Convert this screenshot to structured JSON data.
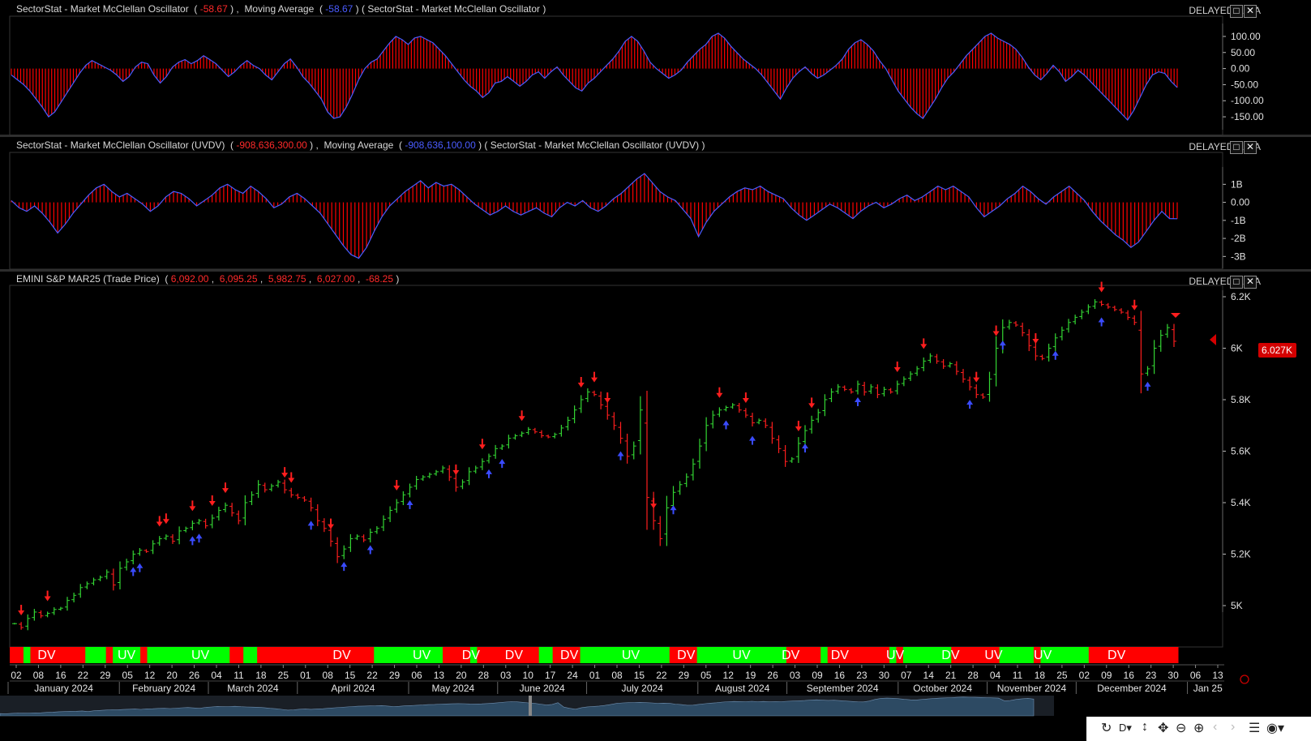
{
  "delayed_label": "DELAYED DATA",
  "panes": [
    {
      "title": "SectorStat - Market McClellan Oscillator",
      "value": "-58.67",
      "ma_label": "Moving Average",
      "ma_value": "-58.67",
      "suffix": "( SectorStat - Market McClellan Oscillator )"
    },
    {
      "title": "SectorStat - Market McClellan Oscillator (UVDV)",
      "value": "-908,636,300.00",
      "ma_label": "Moving Average",
      "ma_value": "-908,636,100.00",
      "suffix": "( SectorStat - Market McClellan Oscillator (UVDV) )"
    },
    {
      "title": "EMINI S&P MAR25 (Trade Price)",
      "open": "6,092.00",
      "high": "6,095.25",
      "low": "5,982.75",
      "close": "6,027.00",
      "change": "-68.25"
    }
  ],
  "last_price_badge": "6.027K",
  "colors": {
    "up": "#33d633",
    "down": "#ff1e1e",
    "uv": "#00ff00",
    "dv": "#ff0000",
    "ma": "#4a5cff",
    "arrow_up": "#3a4bff"
  },
  "chart_data": [
    {
      "type": "bar",
      "name": "McClellan Oscillator",
      "ylim": [
        -170,
        120
      ],
      "yticks": [
        "100.00",
        "50.00",
        "0.00",
        "-50.00",
        "-100.00",
        "-150.00"
      ],
      "ytick_values": [
        100,
        50,
        0,
        -50,
        -100,
        -150
      ],
      "values": [
        -20,
        -35,
        -50,
        -70,
        -95,
        -120,
        -150,
        -135,
        -105,
        -75,
        -45,
        -15,
        10,
        25,
        15,
        5,
        -5,
        -20,
        -40,
        -25,
        5,
        20,
        15,
        -20,
        -45,
        -25,
        5,
        20,
        28,
        15,
        25,
        40,
        28,
        15,
        -5,
        -25,
        -10,
        10,
        25,
        10,
        0,
        -20,
        -35,
        -10,
        15,
        30,
        5,
        -25,
        -45,
        -70,
        -95,
        -135,
        -155,
        -150,
        -120,
        -80,
        -35,
        0,
        20,
        30,
        55,
        80,
        100,
        90,
        75,
        95,
        100,
        90,
        80,
        60,
        40,
        15,
        -10,
        -35,
        -55,
        -70,
        -90,
        -75,
        -45,
        -40,
        -25,
        -40,
        -55,
        -40,
        -20,
        -10,
        -30,
        -10,
        5,
        -20,
        -40,
        -60,
        -70,
        -45,
        -30,
        -10,
        10,
        30,
        55,
        85,
        100,
        85,
        55,
        20,
        0,
        -15,
        -30,
        -20,
        -5,
        20,
        40,
        60,
        75,
        100,
        110,
        95,
        70,
        50,
        30,
        15,
        0,
        -20,
        -45,
        -70,
        -95,
        -60,
        -30,
        -10,
        5,
        -15,
        -30,
        -20,
        -5,
        10,
        30,
        60,
        80,
        90,
        75,
        55,
        25,
        0,
        -35,
        -70,
        -95,
        -120,
        -140,
        -155,
        -125,
        -95,
        -60,
        -30,
        -10,
        15,
        40,
        60,
        80,
        100,
        110,
        95,
        85,
        75,
        60,
        35,
        5,
        -20,
        -35,
        -15,
        10,
        -10,
        -40,
        -25,
        -5,
        -20,
        -40,
        -60,
        -80,
        -100,
        -120,
        -140,
        -160,
        -130,
        -90,
        -50,
        -20,
        -10,
        -15,
        -40,
        -58.67
      ]
    },
    {
      "type": "bar",
      "name": "McClellan Oscillator (UVDV)",
      "ylim": [
        -3.3,
        1.6
      ],
      "yticks": [
        "1B",
        "0.00",
        "-1B",
        "-2B",
        "-3B"
      ],
      "ytick_values": [
        1,
        0,
        -1,
        -2,
        -3
      ],
      "values": [
        0.1,
        -0.3,
        -0.5,
        -0.2,
        -0.6,
        -1.1,
        -1.7,
        -1.2,
        -0.6,
        -0.1,
        0.4,
        0.8,
        1.0,
        0.6,
        0.3,
        0.5,
        0.2,
        -0.1,
        -0.5,
        -0.2,
        0.3,
        0.6,
        0.5,
        0.2,
        -0.2,
        0.1,
        0.4,
        0.8,
        1.0,
        0.7,
        0.5,
        0.9,
        0.6,
        0.2,
        -0.3,
        -0.1,
        0.3,
        0.5,
        0.2,
        -0.2,
        -0.6,
        -1.2,
        -1.8,
        -2.4,
        -2.9,
        -3.1,
        -2.5,
        -1.6,
        -0.8,
        -0.2,
        0.2,
        0.6,
        0.9,
        1.2,
        0.8,
        1.1,
        0.9,
        1.0,
        0.7,
        0.3,
        -0.1,
        -0.4,
        -0.7,
        -0.5,
        -0.2,
        -0.5,
        -0.7,
        -0.5,
        -0.3,
        -0.6,
        -0.8,
        -0.3,
        0.0,
        -0.2,
        0.1,
        -0.3,
        -0.5,
        -0.2,
        0.2,
        0.5,
        0.9,
        1.3,
        1.6,
        1.1,
        0.6,
        0.3,
        0.1,
        -0.4,
        -0.9,
        -1.9,
        -1.1,
        -0.5,
        -0.1,
        0.3,
        0.6,
        0.8,
        0.7,
        0.9,
        0.6,
        0.4,
        0.2,
        -0.3,
        -0.7,
        -1.0,
        -0.7,
        -0.4,
        -0.1,
        -0.3,
        -0.6,
        -0.9,
        -0.5,
        -0.2,
        0.0,
        -0.3,
        -0.1,
        0.2,
        0.4,
        0.1,
        0.3,
        0.6,
        0.9,
        0.7,
        0.9,
        0.6,
        0.3,
        -0.3,
        -0.8,
        -0.5,
        -0.2,
        0.2,
        0.5,
        0.9,
        0.6,
        0.2,
        -0.1,
        0.3,
        0.6,
        0.9,
        0.5,
        0.1,
        -0.5,
        -1.0,
        -1.4,
        -1.8,
        -2.1,
        -2.5,
        -2.2,
        -1.6,
        -1.0,
        -0.5,
        -0.9,
        -0.908636
      ]
    },
    {
      "type": "ohlc",
      "name": "EMINI S&P MAR25 (Trade Price)",
      "ylim": [
        4880,
        6230
      ],
      "yticks": [
        "6.2K",
        "6K",
        "5.8K",
        "5.6K",
        "5.4K",
        "5.2K",
        "5K"
      ],
      "ytick_values": [
        6200,
        6000,
        5800,
        5600,
        5400,
        5200,
        5000
      ],
      "closes": [
        4930,
        4915,
        4950,
        4975,
        4960,
        4970,
        4985,
        4990,
        5020,
        5040,
        5070,
        5085,
        5100,
        5110,
        5130,
        5080,
        5145,
        5170,
        5200,
        5215,
        5210,
        5240,
        5260,
        5270,
        5250,
        5290,
        5300,
        5320,
        5330,
        5310,
        5340,
        5370,
        5390,
        5360,
        5330,
        5400,
        5430,
        5470,
        5450,
        5465,
        5480,
        5450,
        5430,
        5420,
        5410,
        5380,
        5330,
        5300,
        5250,
        5190,
        5220,
        5260,
        5270,
        5255,
        5285,
        5300,
        5335,
        5370,
        5400,
        5430,
        5460,
        5490,
        5500,
        5510,
        5520,
        5535,
        5500,
        5460,
        5480,
        5520,
        5535,
        5560,
        5580,
        5610,
        5620,
        5650,
        5660,
        5670,
        5685,
        5675,
        5660,
        5655,
        5665,
        5690,
        5720,
        5760,
        5800,
        5830,
        5820,
        5780,
        5740,
        5700,
        5650,
        5580,
        5620,
        5760,
        5420,
        5330,
        5260,
        5380,
        5440,
        5470,
        5500,
        5550,
        5620,
        5700,
        5740,
        5760,
        5770,
        5780,
        5760,
        5740,
        5710,
        5720,
        5700,
        5650,
        5610,
        5560,
        5570,
        5630,
        5680,
        5720,
        5750,
        5800,
        5830,
        5850,
        5840,
        5830,
        5860,
        5830,
        5850,
        5820,
        5840,
        5830,
        5860,
        5880,
        5900,
        5920,
        5950,
        5970,
        5950,
        5930,
        5940,
        5910,
        5880,
        5850,
        5820,
        5810,
        5880,
        6000,
        6080,
        6100,
        6090,
        6060,
        6010,
        5970,
        5960,
        6000,
        6040,
        6070,
        6100,
        6120,
        6140,
        6160,
        6180,
        6170,
        6160,
        6150,
        6140,
        6120,
        6100,
        5900,
        5920,
        6000,
        6050,
        6080,
        6027
      ]
    }
  ],
  "signals": {
    "up_idx": [
      18,
      19,
      27,
      28,
      45,
      50,
      54,
      60,
      72,
      74,
      92,
      100,
      108,
      112,
      120,
      128,
      145,
      150,
      158,
      165,
      172,
      178
    ],
    "down_idx": [
      1,
      5,
      22,
      23,
      27,
      30,
      32,
      41,
      42,
      48,
      58,
      67,
      71,
      77,
      86,
      88,
      90,
      97,
      107,
      111,
      119,
      121,
      134,
      138,
      146,
      149,
      155,
      165,
      170,
      180,
      182,
      195
    ]
  },
  "uvdv_band": {
    "segments": [
      {
        "s": "DV",
        "w": 2
      },
      {
        "s": "UV",
        "w": 1
      },
      {
        "s": "DV",
        "w": 8
      },
      {
        "s": "UV",
        "w": 3
      },
      {
        "s": "DV",
        "w": 1
      },
      {
        "s": "UV",
        "w": 4
      },
      {
        "s": "DV",
        "w": 1
      },
      {
        "s": "UV",
        "w": 12
      },
      {
        "s": "DV",
        "w": 2
      },
      {
        "s": "UV",
        "w": 2
      },
      {
        "s": "DV",
        "w": 17
      },
      {
        "s": "UV",
        "w": 10
      },
      {
        "s": "DV",
        "w": 4
      },
      {
        "s": "UV",
        "w": 1
      },
      {
        "s": "DV",
        "w": 9
      },
      {
        "s": "UV",
        "w": 2
      },
      {
        "s": "DV",
        "w": 4
      },
      {
        "s": "UV",
        "w": 1
      },
      {
        "s": "UV",
        "w": 12
      },
      {
        "s": "DV",
        "w": 4
      },
      {
        "s": "UV",
        "w": 13
      },
      {
        "s": "DV",
        "w": 5
      },
      {
        "s": "UV",
        "w": 1
      },
      {
        "s": "DV",
        "w": 9
      },
      {
        "s": "UV",
        "w": 1
      },
      {
        "s": "DV",
        "w": 1
      },
      {
        "s": "UV",
        "w": 1
      },
      {
        "s": "UV",
        "w": 6
      },
      {
        "s": "DV",
        "w": 7
      },
      {
        "s": "UV",
        "w": 5
      },
      {
        "s": "DV",
        "w": 1
      },
      {
        "s": "UV",
        "w": 1
      },
      {
        "s": "UV",
        "w": 6
      },
      {
        "s": "DV",
        "w": 13
      }
    ],
    "labels": [
      {
        "t": "DV",
        "i": 6
      },
      {
        "t": "UV",
        "i": 19
      },
      {
        "t": "UV",
        "i": 31
      },
      {
        "t": "DV",
        "i": 54
      },
      {
        "t": "UV",
        "i": 67
      },
      {
        "t": "DV",
        "i": 75
      },
      {
        "t": "DV",
        "i": 82
      },
      {
        "t": "DV",
        "i": 91
      },
      {
        "t": "UV",
        "i": 101
      },
      {
        "t": "DV",
        "i": 110
      },
      {
        "t": "UV",
        "i": 119
      },
      {
        "t": "DV",
        "i": 127
      },
      {
        "t": "DV",
        "i": 135
      },
      {
        "t": "UV",
        "i": 144
      },
      {
        "t": "DV",
        "i": 153
      },
      {
        "t": "UV",
        "i": 160
      },
      {
        "t": "UV",
        "i": 168
      },
      {
        "t": "DV",
        "i": 180
      }
    ]
  },
  "date_axis": {
    "days": [
      "02",
      "08",
      "16",
      "22",
      "29",
      "05",
      "12",
      "20",
      "26",
      "04",
      "11",
      "18",
      "25",
      "01",
      "08",
      "15",
      "22",
      "29",
      "06",
      "13",
      "20",
      "28",
      "03",
      "10",
      "17",
      "24",
      "01",
      "08",
      "15",
      "22",
      "29",
      "05",
      "12",
      "19",
      "26",
      "03",
      "09",
      "16",
      "23",
      "30",
      "07",
      "14",
      "21",
      "28",
      "04",
      "11",
      "18",
      "25",
      "02",
      "09",
      "16",
      "23",
      "30",
      "06",
      "13"
    ],
    "months": [
      "January 2024",
      "February 2024",
      "March 2024",
      "April 2024",
      "May 2024",
      "June 2024",
      "July 2024",
      "August 2024",
      "September 2024",
      "October 2024",
      "November 2024",
      "December 2024",
      "Jan 25"
    ]
  }
}
